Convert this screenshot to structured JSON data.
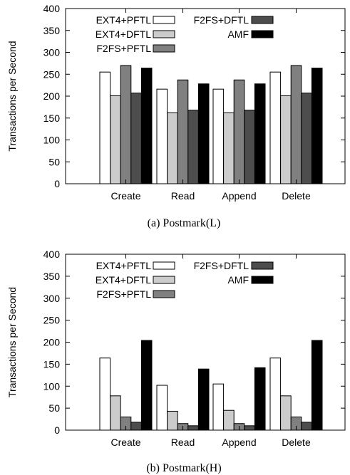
{
  "chart_data": [
    {
      "type": "bar",
      "caption": "(a) Postmark(L)",
      "ylabel": "Transactions per Second",
      "ylim": [
        0,
        400
      ],
      "yticks": [
        0,
        50,
        100,
        150,
        200,
        250,
        300,
        350,
        400
      ],
      "categories": [
        "Create",
        "Read",
        "Append",
        "Delete"
      ],
      "legend_placement": "top-left",
      "series": [
        {
          "name": "EXT4+PFTL",
          "color": "#ffffff",
          "values": [
            255,
            216,
            216,
            255
          ]
        },
        {
          "name": "EXT4+DFTL",
          "color": "#cccccc",
          "values": [
            201,
            162,
            162,
            201
          ]
        },
        {
          "name": "F2FS+PFTL",
          "color": "#808080",
          "values": [
            270,
            237,
            237,
            270
          ]
        },
        {
          "name": "F2FS+DFTL",
          "color": "#4d4d4d",
          "values": [
            207,
            168,
            168,
            207
          ]
        },
        {
          "name": "AMF",
          "color": "#000000",
          "values": [
            264,
            228,
            228,
            264
          ]
        }
      ]
    },
    {
      "type": "bar",
      "caption": "(b) Postmark(H)",
      "ylabel": "Transactions per Second",
      "ylim": [
        0,
        400
      ],
      "yticks": [
        0,
        50,
        100,
        150,
        200,
        250,
        300,
        350,
        400
      ],
      "categories": [
        "Create",
        "Read",
        "Append",
        "Delete"
      ],
      "legend_placement": "top-left",
      "series": [
        {
          "name": "EXT4+PFTL",
          "color": "#ffffff",
          "values": [
            164,
            102,
            105,
            164
          ]
        },
        {
          "name": "EXT4+DFTL",
          "color": "#cccccc",
          "values": [
            78,
            43,
            45,
            78
          ]
        },
        {
          "name": "F2FS+PFTL",
          "color": "#808080",
          "values": [
            30,
            15,
            15,
            30
          ]
        },
        {
          "name": "F2FS+DFTL",
          "color": "#4d4d4d",
          "values": [
            18,
            10,
            10,
            18
          ]
        },
        {
          "name": "AMF",
          "color": "#000000",
          "values": [
            204,
            139,
            142,
            204
          ]
        }
      ]
    }
  ]
}
